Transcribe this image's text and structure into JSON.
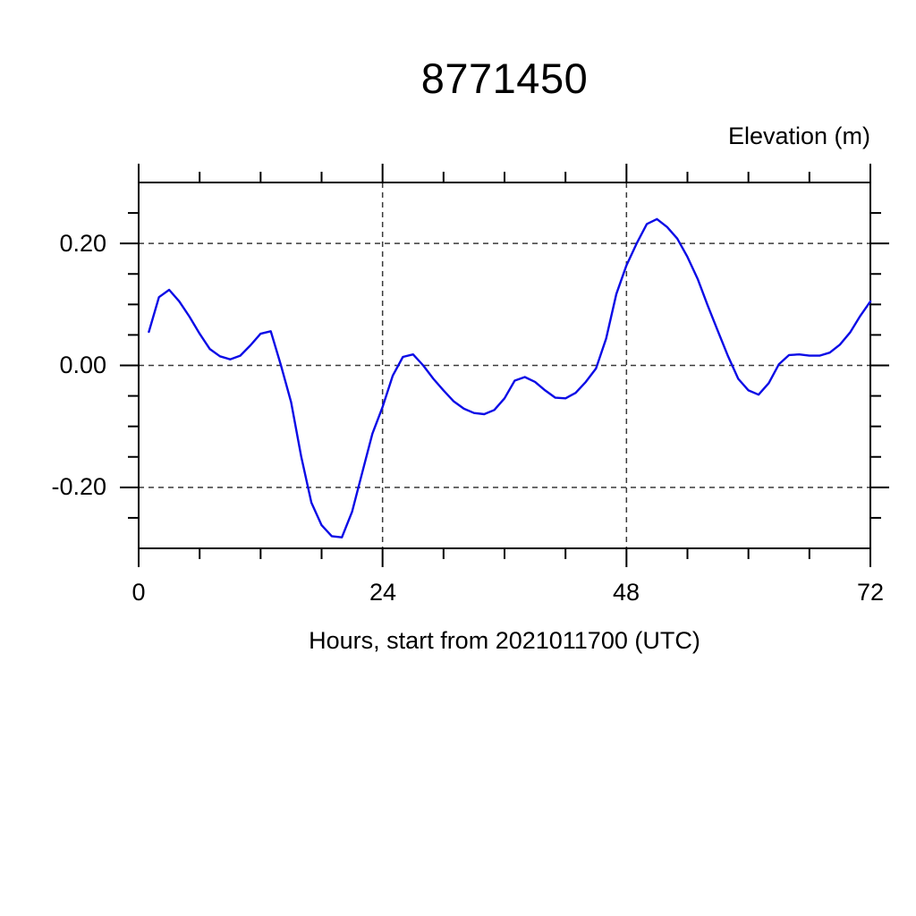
{
  "page": {
    "background": "#ffffff"
  },
  "chart_data": {
    "type": "line",
    "title": "8771450",
    "unit_label": "Elevation (m)",
    "xlabel": "Hours, start from 2021011700 (UTC)",
    "ylabel": "",
    "xlim": [
      0,
      72
    ],
    "ylim": [
      -0.3,
      0.3
    ],
    "x_major_ticks": [
      0,
      24,
      48,
      72
    ],
    "x_tick_labels": [
      "0",
      "24",
      "48",
      "72"
    ],
    "x_minor_step": 6,
    "y_major_ticks": [
      0.2,
      0.0,
      -0.2
    ],
    "y_tick_labels": [
      "0.20",
      "0.00",
      "-0.20"
    ],
    "y_minor_step": 0.05,
    "grid": {
      "style": "dashed",
      "color": "#3a3a3a",
      "x_lines": [
        24,
        48
      ],
      "y_lines": [
        0.2,
        0.0,
        -0.2
      ]
    },
    "axis_color": "#000000",
    "legend": "none",
    "series": [
      {
        "name": "elevation",
        "color": "#0b0be6",
        "x_start": 1,
        "x_step": 1,
        "values": [
          0.055,
          0.112,
          0.124,
          0.105,
          0.08,
          0.052,
          0.027,
          0.015,
          0.01,
          0.016,
          0.033,
          0.052,
          0.056,
          0.0,
          -0.06,
          -0.15,
          -0.225,
          -0.262,
          -0.28,
          -0.282,
          -0.24,
          -0.176,
          -0.112,
          -0.068,
          -0.017,
          0.014,
          0.018,
          0.0,
          -0.022,
          -0.041,
          -0.059,
          -0.071,
          -0.078,
          -0.08,
          -0.073,
          -0.054,
          -0.025,
          -0.019,
          -0.027,
          -0.041,
          -0.053,
          -0.054,
          -0.045,
          -0.027,
          -0.005,
          0.044,
          0.117,
          0.164,
          0.2,
          0.232,
          0.24,
          0.227,
          0.208,
          0.178,
          0.142,
          0.098,
          0.056,
          0.015,
          -0.022,
          -0.041,
          -0.048,
          -0.029,
          0.002,
          0.017,
          0.018,
          0.016,
          0.016,
          0.021,
          0.034,
          0.054,
          0.081,
          0.105
        ]
      }
    ]
  }
}
